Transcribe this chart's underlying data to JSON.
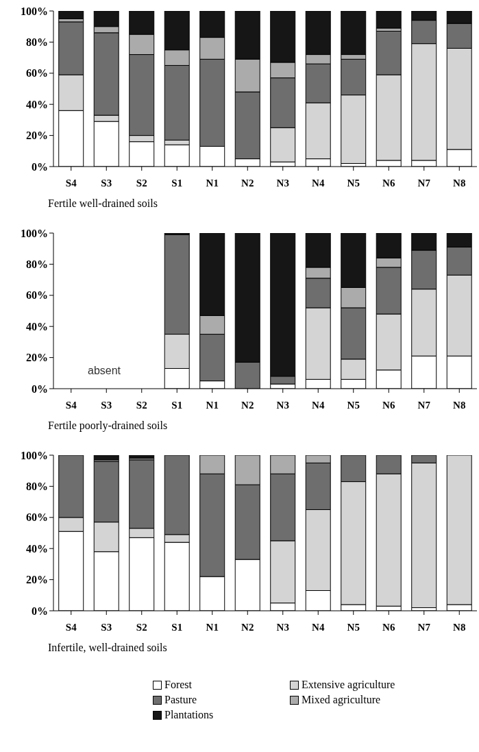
{
  "chart_data": [
    {
      "type": "bar",
      "stacked": true,
      "xlabel": "Fertile well-drained soils",
      "categories": [
        "S4",
        "S3",
        "S2",
        "S1",
        "N1",
        "N2",
        "N3",
        "N4",
        "N5",
        "N6",
        "N7",
        "N8"
      ],
      "ylim": [
        0,
        100
      ],
      "yticks": [
        {
          "value": 0,
          "label": "0%"
        },
        {
          "value": 20,
          "label": "20%"
        },
        {
          "value": 40,
          "label": "40%"
        },
        {
          "value": 60,
          "label": "60%"
        },
        {
          "value": 80,
          "label": "80%"
        },
        {
          "value": 100,
          "label": "100%"
        }
      ],
      "grid": false,
      "legend": false,
      "series": [
        {
          "color": "#ffffff",
          "values": [
            36,
            29,
            16,
            14,
            13,
            5,
            3,
            5,
            2,
            4,
            4,
            11
          ]
        },
        {
          "color": "#d4d4d4",
          "values": [
            23,
            4,
            4,
            3,
            0,
            0,
            22,
            36,
            44,
            55,
            75,
            65
          ]
        },
        {
          "color": "#6e6e6e",
          "values": [
            34,
            53,
            52,
            48,
            56,
            43,
            32,
            25,
            23,
            28,
            15,
            16
          ]
        },
        {
          "color": "#ababab",
          "values": [
            2,
            4,
            13,
            10,
            14,
            21,
            10,
            6,
            3,
            2,
            0,
            0
          ]
        },
        {
          "color": "#161616",
          "values": [
            5,
            10,
            15,
            25,
            17,
            31,
            33,
            28,
            28,
            11,
            6,
            8
          ]
        }
      ]
    },
    {
      "type": "bar",
      "stacked": true,
      "xlabel": "Fertile poorly-drained soils",
      "annotations": [
        "absent"
      ],
      "categories": [
        "S4",
        "S3",
        "S2",
        "S1",
        "N1",
        "N2",
        "N3",
        "N4",
        "N5",
        "N6",
        "N7",
        "N8"
      ],
      "ylim": [
        0,
        100
      ],
      "yticks": [
        {
          "value": 0,
          "label": "0%"
        },
        {
          "value": 20,
          "label": "20%"
        },
        {
          "value": 40,
          "label": "40%"
        },
        {
          "value": 60,
          "label": "60%"
        },
        {
          "value": 80,
          "label": "80%"
        },
        {
          "value": 100,
          "label": "100%"
        }
      ],
      "grid": false,
      "legend": false,
      "series": [
        {
          "color": "#ffffff",
          "values": [
            null,
            null,
            null,
            13,
            5,
            0,
            3,
            6,
            6,
            12,
            21,
            21
          ]
        },
        {
          "color": "#d4d4d4",
          "values": [
            null,
            null,
            null,
            22,
            0,
            0,
            0,
            46,
            13,
            36,
            43,
            52
          ]
        },
        {
          "color": "#6e6e6e",
          "values": [
            null,
            null,
            null,
            64,
            30,
            17,
            5,
            19,
            33,
            30,
            25,
            18
          ]
        },
        {
          "color": "#ababab",
          "values": [
            null,
            null,
            null,
            0,
            12,
            0,
            0,
            7,
            13,
            6,
            0,
            0
          ]
        },
        {
          "color": "#161616",
          "values": [
            null,
            null,
            null,
            1,
            53,
            83,
            92,
            22,
            35,
            16,
            11,
            9
          ]
        }
      ]
    },
    {
      "type": "bar",
      "stacked": true,
      "xlabel": "Infertile, well-drained soils",
      "categories": [
        "S4",
        "S3",
        "S2",
        "S1",
        "N1",
        "N2",
        "N3",
        "N4",
        "N5",
        "N6",
        "N7",
        "N8"
      ],
      "ylim": [
        0,
        100
      ],
      "yticks": [
        {
          "value": 0,
          "label": "0%"
        },
        {
          "value": 20,
          "label": "20%"
        },
        {
          "value": 40,
          "label": "40%"
        },
        {
          "value": 60,
          "label": "60%"
        },
        {
          "value": 80,
          "label": "80%"
        },
        {
          "value": 100,
          "label": "100%"
        }
      ],
      "grid": false,
      "legend": "bottom",
      "series": [
        {
          "name": "Forest",
          "color": "#ffffff",
          "values": [
            51,
            38,
            47,
            44,
            22,
            33,
            5,
            13,
            4,
            3,
            2,
            4
          ]
        },
        {
          "name": "Extensive agriculture",
          "color": "#d4d4d4",
          "values": [
            9,
            19,
            6,
            5,
            0,
            0,
            40,
            52,
            79,
            85,
            93,
            96
          ]
        },
        {
          "name": "Pasture",
          "color": "#6e6e6e",
          "values": [
            40,
            39,
            44,
            51,
            66,
            48,
            43,
            30,
            17,
            12,
            5,
            0
          ]
        },
        {
          "name": "Mixed agriculture",
          "color": "#ababab",
          "values": [
            0,
            1,
            1,
            0,
            12,
            19,
            12,
            5,
            0,
            0,
            0,
            0
          ]
        },
        {
          "name": "Plantations",
          "color": "#161616",
          "values": [
            0,
            3,
            2,
            0,
            0,
            0,
            0,
            0,
            0,
            0,
            0,
            0
          ]
        }
      ]
    }
  ]
}
